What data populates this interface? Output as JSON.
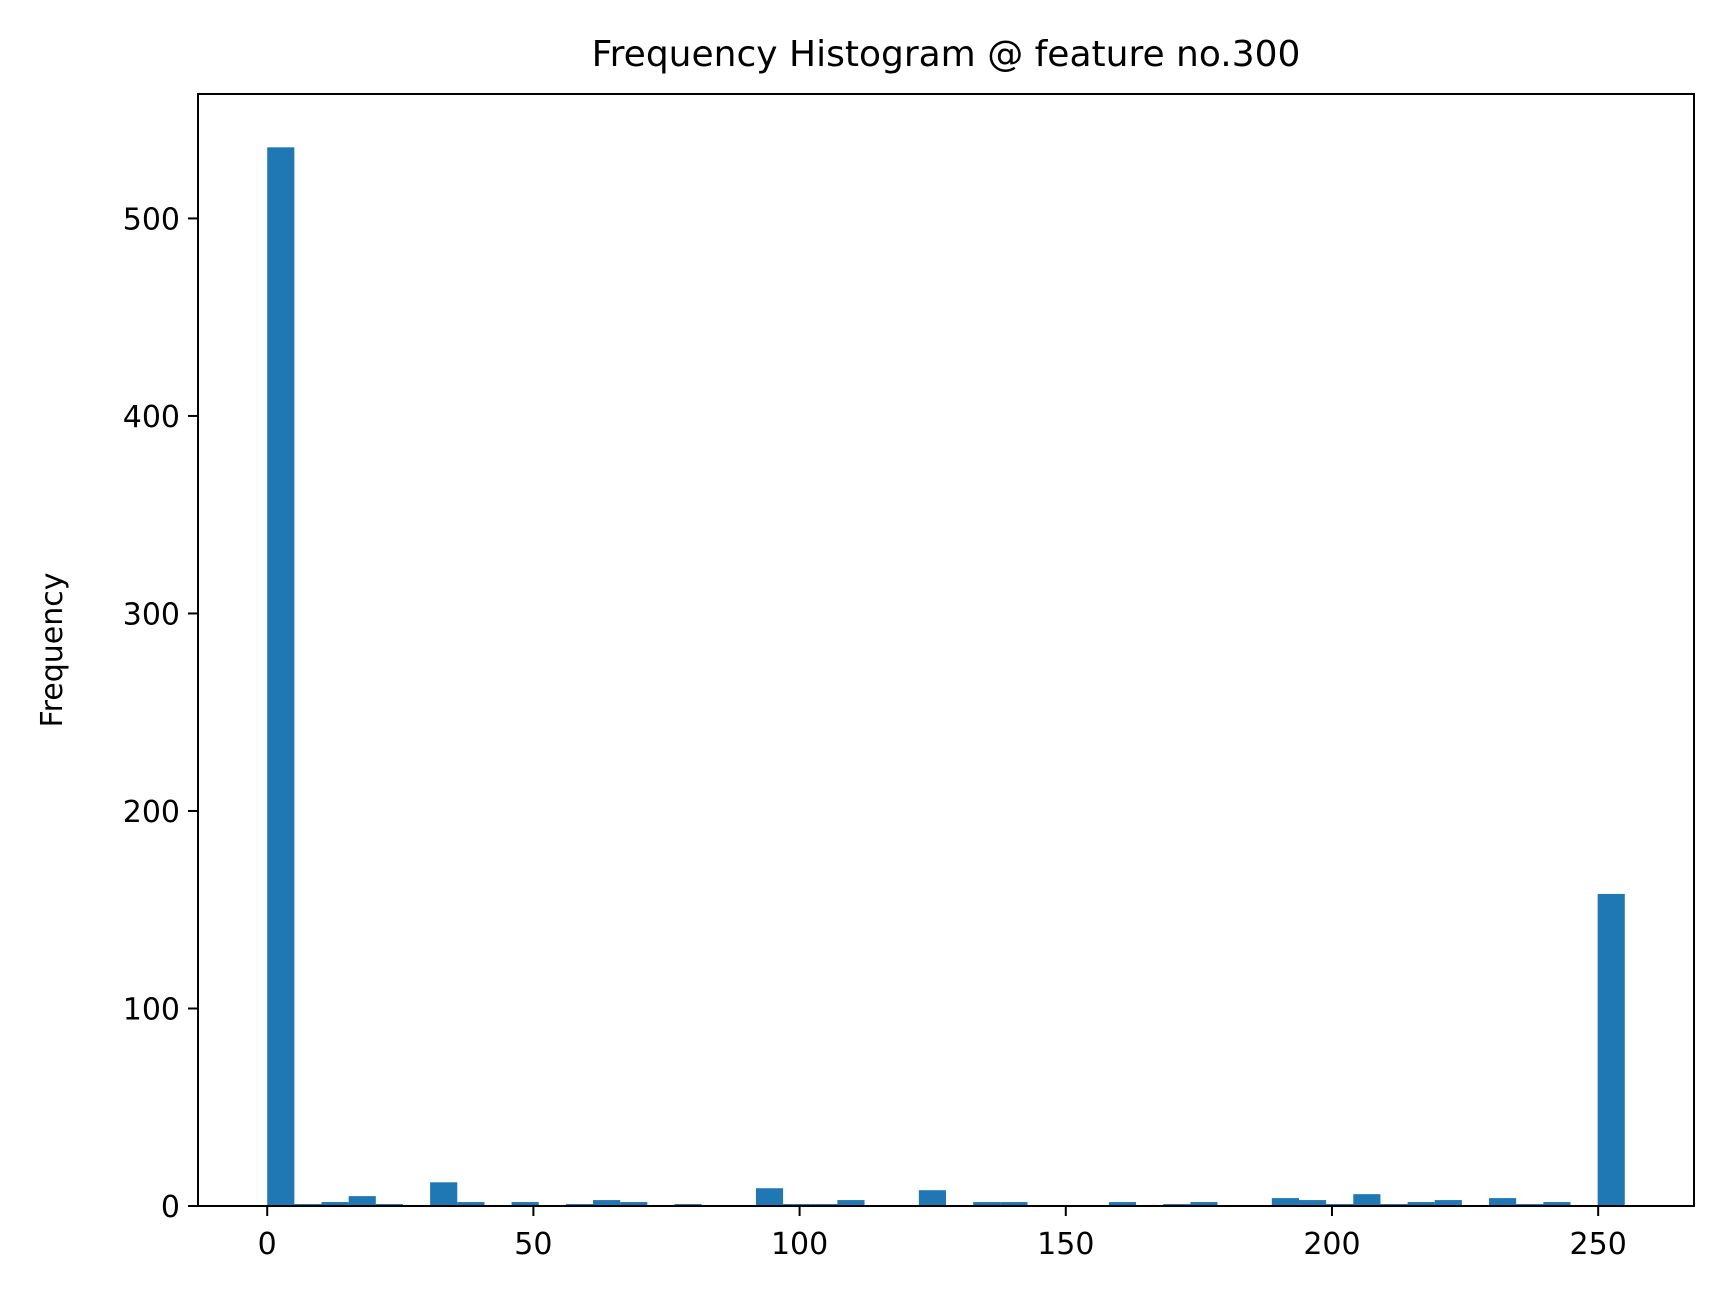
{
  "chart_data": {
    "type": "bar",
    "title": "Frequency Histogram @ feature no.300",
    "xlabel": "",
    "ylabel": "Frequency",
    "xlim": [
      -13,
      268
    ],
    "ylim": [
      0,
      563
    ],
    "x_ticks": [
      0,
      50,
      100,
      150,
      200,
      250
    ],
    "y_ticks": [
      0,
      100,
      200,
      300,
      400,
      500
    ],
    "bin_width": 5.1,
    "bin_starts": [
      0,
      5.1,
      10.2,
      15.3,
      20.4,
      25.5,
      30.6,
      35.7,
      40.8,
      45.9,
      51.0,
      56.1,
      61.2,
      66.3,
      71.4,
      76.5,
      81.6,
      86.7,
      91.8,
      96.9,
      102.0,
      107.1,
      112.2,
      117.3,
      122.4,
      127.5,
      132.6,
      137.7,
      142.8,
      147.9,
      153.0,
      158.1,
      163.2,
      168.3,
      173.4,
      178.5,
      183.6,
      188.7,
      193.8,
      198.9,
      204.0,
      209.1,
      214.2,
      219.3,
      224.4,
      229.5,
      234.6,
      239.7,
      244.8,
      249.9
    ],
    "values": [
      536,
      1,
      2,
      5,
      1,
      0,
      12,
      2,
      0,
      2,
      0,
      1,
      3,
      2,
      0,
      1,
      0,
      0,
      9,
      1,
      1,
      3,
      0,
      0,
      8,
      0,
      2,
      2,
      0,
      0,
      0,
      2,
      0,
      1,
      2,
      0,
      0,
      4,
      3,
      1,
      6,
      1,
      2,
      3,
      0,
      4,
      1,
      2,
      0,
      158
    ],
    "grid": false,
    "legend": "none",
    "bar_color": "#1f77b4"
  }
}
